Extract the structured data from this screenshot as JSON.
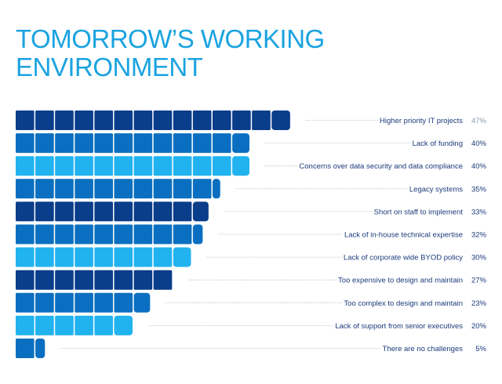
{
  "header": {
    "title_line1": "TOMORROW’S WORKING",
    "title_line2": "ENVIRONMENT"
  },
  "chart_data": {
    "type": "bar",
    "orientation": "horizontal",
    "title": "TOMORROW’S WORKING ENVIRONMENT",
    "unit": "%",
    "categories": [
      "Higher priority IT projects",
      "Lack of funding",
      "Concerns over data security and data compliance",
      "Legacy systems",
      "Short on staff to implement",
      "Lack of in-house technical expertise",
      "Lack of corporate wide BYOD policy",
      "Too expensive to design and maintain",
      "Too complex to design and maintain",
      "Lack of support from senior executives",
      "There are no challenges"
    ],
    "values": [
      47,
      40,
      40,
      35,
      33,
      32,
      30,
      27,
      23,
      20,
      5
    ],
    "value_labels": [
      "47%",
      "40%",
      "40%",
      "35%",
      "33%",
      "32%",
      "30%",
      "27%",
      "23%",
      "20%",
      "5%"
    ],
    "bar_colors": [
      "#0a3d8a",
      "#0a6fc0",
      "#21b3ef",
      "#0a6fc0",
      "#0a3d8a",
      "#0a6fc0",
      "#21b3ef",
      "#0a3d8a",
      "#0a6fc0",
      "#21b3ef",
      "#0a6fc0"
    ],
    "label_color": "#1a3a7a",
    "value_label_color_top": "#8a9aaa",
    "value_label_color": "#1a3a7a",
    "dotted_leader_color": "#9aa6b2",
    "segment_size_percent": 4,
    "xlim": [
      0,
      50
    ],
    "grid": false
  }
}
